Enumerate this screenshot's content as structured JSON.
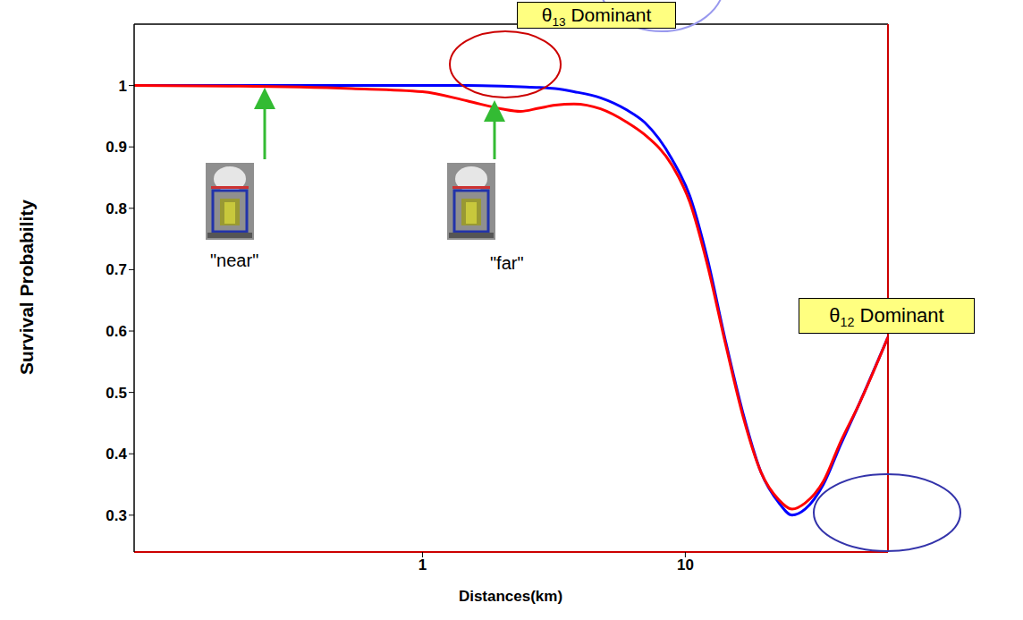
{
  "chart_data": {
    "type": "line",
    "x_label": "Distances(km)",
    "y_label": "Survival Probability",
    "log": "x",
    "grid": false,
    "xlim": [
      0.08,
      59
    ],
    "xticks": [
      1,
      10
    ],
    "ylim": [
      0.24,
      1.1
    ],
    "yticks": [
      0.3,
      0.4,
      0.5,
      0.6,
      0.7,
      0.8,
      0.9,
      1
    ],
    "x": [
      0.08,
      0.2,
      0.54,
      1,
      1.48,
      2,
      2.36,
      2.76,
      3.2,
      3.77,
      4.76,
      6,
      7,
      8.9,
      10.4,
      12.1,
      14.2,
      16.6,
      19.4,
      22.7,
      25.5,
      28.6,
      33.5,
      39,
      45.7,
      59
    ],
    "series": [
      {
        "color": "#0000ff",
        "values": [
          1,
          1,
          1,
          1,
          1,
          0.999,
          0.998,
          0.997,
          0.995,
          0.99,
          0.98,
          0.96,
          0.94,
          0.88,
          0.82,
          0.72,
          0.585,
          0.465,
          0.37,
          0.32,
          0.3,
          0.31,
          0.35,
          0.415,
          0.48,
          0.59
        ]
      },
      {
        "color": "#ff0000",
        "values": [
          1,
          0.999,
          0.995,
          0.99,
          0.975,
          0.962,
          0.958,
          0.963,
          0.968,
          0.97,
          0.962,
          0.94,
          0.92,
          0.87,
          0.81,
          0.71,
          0.58,
          0.46,
          0.37,
          0.325,
          0.31,
          0.32,
          0.355,
          0.42,
          0.48,
          0.59
        ]
      }
    ],
    "annotations": [
      "θ13 Dominant",
      "θ12 Dominant",
      "\"near\"",
      "\"far\""
    ]
  }
}
